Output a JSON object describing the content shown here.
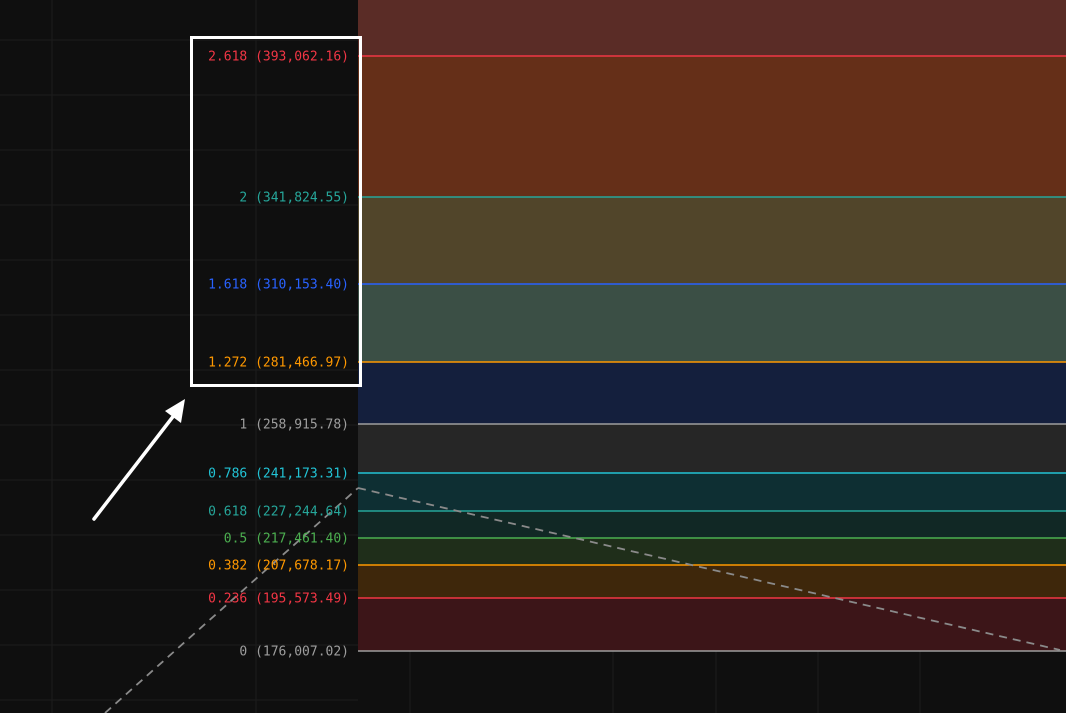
{
  "background_color": "#0f0f0f",
  "grid_color": "#1c1c1c",
  "trend_line_color": "#8a8a8a",
  "highlight_box_color": "#ffffff",
  "arrow_color": "#ffffff",
  "fib_levels": [
    {
      "ratio": 2.618,
      "label": "2.618 (393,062.16)",
      "price": 393062.16,
      "color": "#f23645",
      "zone_color": "#5a2c26"
    },
    {
      "ratio": 2,
      "label": "2 (341,824.55)",
      "price": 341824.55,
      "color": "#26a69a",
      "zone_color": "#652f18"
    },
    {
      "ratio": 1.618,
      "label": "1.618 (310,153.40)",
      "price": 310153.4,
      "color": "#2962ff",
      "zone_color": "#51452a"
    },
    {
      "ratio": 1.272,
      "label": "1.272 (281,466.97)",
      "price": 281466.97,
      "color": "#ff9800",
      "zone_color": "#3b4f45"
    },
    {
      "ratio": 1,
      "label": "1 (258,915.78)",
      "price": 258915.78,
      "color": "#9e9e9e",
      "zone_color": "#141f3d"
    },
    {
      "ratio": 0.786,
      "label": "0.786 (241,173.31)",
      "price": 241173.31,
      "color": "#22c3d5",
      "zone_color": "#262626"
    },
    {
      "ratio": 0.618,
      "label": "0.618 (227,244.64)",
      "price": 227244.64,
      "color": "#26a69a",
      "zone_color": "#0e2f33"
    },
    {
      "ratio": 0.5,
      "label": "0.5 (217,461.40)",
      "price": 217461.4,
      "color": "#4caf50",
      "zone_color": "#112825"
    },
    {
      "ratio": 0.382,
      "label": "0.382 (207,678.17)",
      "price": 207678.17,
      "color": "#ff9800",
      "zone_color": "#1f2e1a"
    },
    {
      "ratio": 0.236,
      "label": "0.236 (195,573.49)",
      "price": 195573.49,
      "color": "#f23645",
      "zone_color": "#3e270b"
    },
    {
      "ratio": 0,
      "label": "0 (176,007.02)",
      "price": 176007.02,
      "color": "#9e9e9e",
      "zone_color": "#3c1518"
    }
  ]
}
